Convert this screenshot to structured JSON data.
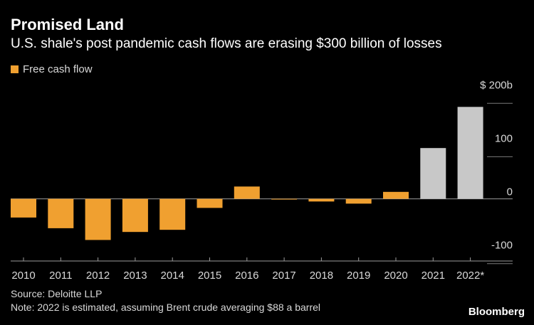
{
  "header": {
    "title": "Promised Land",
    "subtitle": "U.S. shale's post pandemic cash flows are erasing $300 billion of losses"
  },
  "legend": {
    "label": "Free cash flow",
    "color": "#f0a030"
  },
  "footer": {
    "source": "Source: Deloitte LLP",
    "note": "Note: 2022 is estimated, assuming Brent crude averaging $88 a barrel",
    "brand": "Bloomberg"
  },
  "chart_data": {
    "type": "bar",
    "categories": [
      "2010",
      "2011",
      "2012",
      "2013",
      "2014",
      "2015",
      "2016",
      "2017",
      "2018",
      "2019",
      "2020",
      "2021",
      "2022*"
    ],
    "values": [
      -35,
      -55,
      -77,
      -62,
      -58,
      -17,
      23,
      -1,
      -5,
      -9,
      13,
      95,
      172
    ],
    "bar_colors": [
      "#f0a030",
      "#f0a030",
      "#f0a030",
      "#f0a030",
      "#f0a030",
      "#f0a030",
      "#f0a030",
      "#f0a030",
      "#f0a030",
      "#f0a030",
      "#f0a030",
      "#c8c8c8",
      "#c8c8c8"
    ],
    "ylim": [
      -115,
      215
    ],
    "yticks": [
      200,
      100,
      0,
      -100
    ],
    "ytick_labels": [
      "$ 200b",
      "100",
      "0",
      "-100"
    ],
    "axis_position": "right",
    "grid": true
  }
}
